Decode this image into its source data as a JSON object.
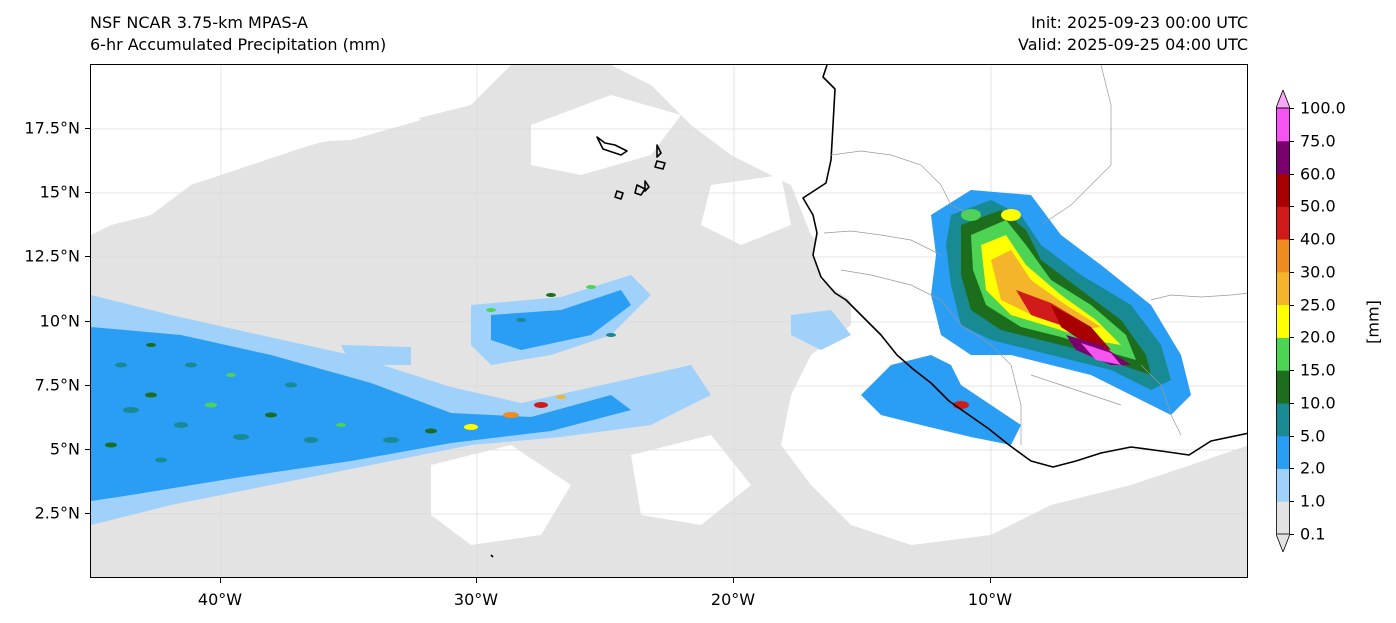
{
  "header": {
    "model": "NSF NCAR 3.75-km MPAS-A",
    "field": "6-hr Accumulated Precipitation (mm)",
    "init": "Init: 2025-09-23 00:00 UTC",
    "valid": "Valid: 2025-09-25 04:00 UTC"
  },
  "map": {
    "lat_labels": [
      "17.5°N",
      "15°N",
      "12.5°N",
      "10°N",
      "7.5°N",
      "5°N",
      "2.5°N"
    ],
    "lon_labels": [
      "40°W",
      "30°W",
      "20°W",
      "10°W"
    ],
    "colors": {
      "land_background": "#ffffff",
      "trace_precip": "#e3e3e3",
      "coastline": "#000000",
      "borders": "#9a9a9a",
      "grid": "#dddddd"
    }
  },
  "colorbar": {
    "units": "[mm]",
    "levels": [
      "0.1",
      "1.0",
      "2.0",
      "5.0",
      "10.0",
      "15.0",
      "20.0",
      "25.0",
      "30.0",
      "40.0",
      "50.0",
      "60.0",
      "75.0",
      "100.0"
    ],
    "colors": [
      "#e3e3e3",
      "#9fd1fa",
      "#2a9df4",
      "#178a94",
      "#1c6e1c",
      "#4dd455",
      "#ffff00",
      "#f5b52a",
      "#f08b20",
      "#d11a1a",
      "#a80000",
      "#7a0070",
      "#f554f0",
      "#fba6f8"
    ]
  }
}
